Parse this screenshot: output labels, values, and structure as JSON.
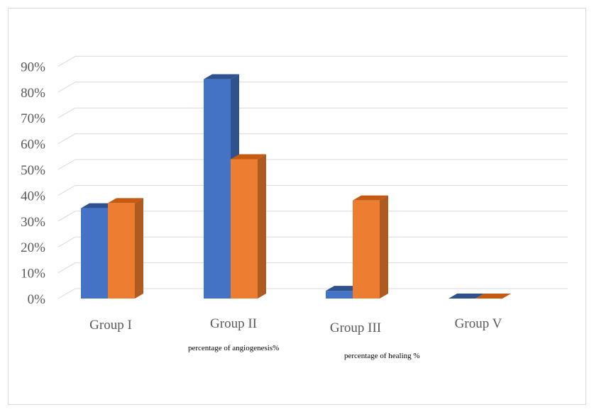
{
  "chart_data": {
    "type": "bar",
    "categories": [
      "Group I",
      "Group II",
      "Group III",
      "Group V"
    ],
    "series": [
      {
        "name": "percentage of angiogenesis%",
        "values": [
          0.35,
          0.85,
          0.03,
          0.0
        ],
        "color": "#4472C4",
        "side": "#2F528F",
        "top": "#2F528F"
      },
      {
        "name": "percentage of healing %",
        "values": [
          0.37,
          0.54,
          0.38,
          0.0
        ],
        "color": "#ED7D31",
        "side": "#AE5A21",
        "top": "#C55A11"
      }
    ],
    "y_ticks": [
      "0%",
      "10%",
      "20%",
      "30%",
      "40%",
      "50%",
      "60%",
      "70%",
      "80%",
      "90%"
    ],
    "ylim": [
      0,
      0.9
    ],
    "grid": true,
    "legend_placement": "bottom"
  }
}
